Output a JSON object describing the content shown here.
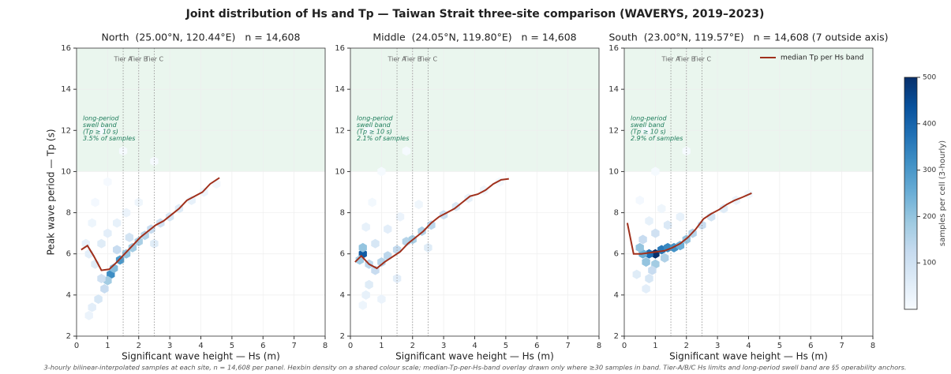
{
  "title": "Joint distribution of Hs and Tp — Taiwan Strait three-site comparison (WAVERYS, 2019–2023)",
  "footnote": "3-hourly bilinear-interpolated samples at each site, n = 14,608 per panel. Hexbin density on a shared colour scale; median-Tp-per-Hs-band overlay drawn only where ≥30 samples in band. Tier-A/B/C Hs limits and long-period swell band are §5 operability anchors.",
  "colorbar": {
    "label": "samples per cell (3-hourly)",
    "lim": [
      0,
      500
    ],
    "ticks": [
      100,
      200,
      300,
      400,
      500
    ]
  },
  "chart_data": [
    {
      "type": "hexbin",
      "title": "North  (25.00°N, 120.44°E)   n = 14,608",
      "xlabel": "Significant wave height — Hs (m)",
      "ylabel": "Peak wave period — Tp (s)",
      "xlim": [
        0,
        8
      ],
      "ylim": [
        2,
        16
      ],
      "xticks": [
        0,
        1,
        2,
        3,
        4,
        5,
        6,
        7,
        8
      ],
      "yticks": [
        2,
        4,
        6,
        8,
        10,
        12,
        14,
        16
      ],
      "grid": true,
      "tiers": [
        {
          "value": 1.5,
          "label": "Tier A"
        },
        {
          "value": 2.0,
          "label": "Tier B"
        },
        {
          "value": 2.5,
          "label": "Tier C"
        }
      ],
      "band": [
        10,
        16
      ],
      "band_label": [
        "long-period",
        "swell band",
        "(Tp ≥ 10 s)",
        "3.5% of samples"
      ],
      "hexbin": {
        "x": [
          1.1,
          1.4,
          1.2,
          1.0,
          0.9,
          0.7,
          0.5,
          0.4,
          1.6,
          1.8,
          2.0,
          2.2,
          2.4,
          2.7,
          3.0,
          3.3,
          3.7,
          4.1,
          4.5,
          0.6,
          0.4,
          0.3,
          0.8,
          1.0,
          1.3,
          1.6,
          0.5,
          2.0,
          0.8,
          1.3,
          1.7,
          2.5,
          0.6,
          1.0,
          1.5,
          0.8,
          2.5
        ],
        "y": [
          5.0,
          5.7,
          5.3,
          4.7,
          4.3,
          3.8,
          3.4,
          3.0,
          6.0,
          6.3,
          6.6,
          6.9,
          7.2,
          7.5,
          7.8,
          8.2,
          8.6,
          9.0,
          9.4,
          5.5,
          6.0,
          6.5,
          6.5,
          7.0,
          7.5,
          8.0,
          7.5,
          8.5,
          4.8,
          6.2,
          6.8,
          6.5,
          8.5,
          9.5,
          11,
          12,
          10.5
        ],
        "counts": [
          320,
          300,
          220,
          180,
          120,
          80,
          50,
          30,
          200,
          180,
          170,
          150,
          120,
          100,
          80,
          60,
          40,
          25,
          12,
          60,
          50,
          40,
          60,
          50,
          40,
          30,
          25,
          20,
          100,
          120,
          90,
          60,
          10,
          6,
          4,
          3,
          4
        ]
      },
      "median": {
        "color": "#a0301c",
        "x": [
          0.15,
          0.35,
          0.55,
          0.8,
          1.05,
          1.3,
          1.55,
          1.8,
          2.05,
          2.3,
          2.55,
          2.8,
          3.05,
          3.3,
          3.55,
          3.8,
          4.05,
          4.3,
          4.6
        ],
        "y": [
          6.2,
          6.4,
          5.9,
          5.2,
          5.25,
          5.6,
          6.0,
          6.4,
          6.8,
          7.1,
          7.4,
          7.6,
          7.9,
          8.2,
          8.6,
          8.8,
          9.0,
          9.4,
          9.7
        ]
      }
    },
    {
      "type": "hexbin",
      "title": "Middle  (24.05°N, 119.80°E)   n = 14,608",
      "xlabel": "Significant wave height — Hs (m)",
      "xlim": [
        0,
        8
      ],
      "ylim": [
        2,
        16
      ],
      "xticks": [
        0,
        1,
        2,
        3,
        4,
        5,
        6,
        7,
        8
      ],
      "yticks": [
        2,
        4,
        6,
        8,
        10,
        12,
        14,
        16
      ],
      "grid": true,
      "tiers": [
        {
          "value": 1.5,
          "label": "Tier A"
        },
        {
          "value": 2.0,
          "label": "Tier B"
        },
        {
          "value": 2.5,
          "label": "Tier C"
        }
      ],
      "band": [
        10,
        16
      ],
      "band_label": [
        "long-period",
        "swell band",
        "(Tp ≥ 10 s)",
        "2.1% of samples"
      ],
      "hexbin": {
        "x": [
          0.4,
          0.4,
          0.3,
          0.6,
          0.8,
          1.0,
          1.2,
          1.5,
          1.8,
          2.0,
          2.3,
          2.6,
          3.0,
          3.4,
          3.8,
          4.3,
          4.8,
          0.6,
          0.5,
          0.4,
          0.8,
          1.2,
          0.5,
          1.6,
          2.2,
          0.7,
          1.0,
          1.5,
          2.5,
          1.0,
          1.8,
          0.6
        ],
        "y": [
          6.0,
          6.3,
          5.7,
          5.5,
          5.2,
          5.6,
          5.9,
          6.2,
          6.6,
          6.7,
          7.1,
          7.4,
          7.9,
          8.3,
          8.7,
          9.1,
          9.5,
          4.5,
          4.0,
          3.5,
          6.5,
          7.2,
          7.3,
          7.8,
          8.4,
          8.5,
          3.8,
          4.8,
          6.3,
          10,
          11,
          12
        ],
        "counts": [
          420,
          200,
          180,
          140,
          120,
          150,
          140,
          130,
          150,
          170,
          160,
          140,
          110,
          70,
          40,
          20,
          8,
          60,
          40,
          25,
          80,
          50,
          40,
          30,
          20,
          12,
          30,
          50,
          60,
          5,
          4,
          3
        ]
      },
      "median": {
        "color": "#a0301c",
        "x": [
          0.15,
          0.35,
          0.6,
          0.85,
          1.1,
          1.35,
          1.6,
          1.85,
          2.1,
          2.35,
          2.6,
          2.85,
          3.1,
          3.35,
          3.6,
          3.85,
          4.1,
          4.35,
          4.6,
          4.85,
          5.1
        ],
        "y": [
          5.6,
          5.9,
          5.5,
          5.3,
          5.6,
          5.85,
          6.1,
          6.5,
          6.8,
          7.1,
          7.5,
          7.8,
          8.0,
          8.2,
          8.5,
          8.8,
          8.9,
          9.1,
          9.4,
          9.6,
          9.65
        ]
      }
    },
    {
      "type": "hexbin",
      "title": "South  (23.00°N, 119.57°E)   n = 14,608 (7 outside axis)",
      "xlabel": "Significant wave height — Hs (m)",
      "xlim": [
        0,
        8
      ],
      "ylim": [
        2,
        16
      ],
      "xticks": [
        0,
        1,
        2,
        3,
        4,
        5,
        6,
        7,
        8
      ],
      "yticks": [
        2,
        4,
        6,
        8,
        10,
        12,
        14,
        16
      ],
      "grid": true,
      "legend": "upper right",
      "tiers": [
        {
          "value": 1.5,
          "label": "Tier A"
        },
        {
          "value": 2.0,
          "label": "Tier B"
        },
        {
          "value": 2.5,
          "label": "Tier C"
        }
      ],
      "band": [
        10,
        16
      ],
      "band_label": [
        "long-period",
        "swell band",
        "(Tp ≥ 10 s)",
        "2.9% of samples"
      ],
      "hexbin": {
        "x": [
          1.0,
          0.8,
          1.2,
          1.4,
          1.6,
          0.6,
          0.5,
          1.8,
          2.0,
          2.2,
          2.5,
          2.8,
          3.2,
          3.6,
          4.0,
          0.7,
          1.0,
          1.3,
          0.9,
          0.8,
          0.7,
          0.6,
          1.0,
          1.4,
          0.8,
          1.8,
          1.2,
          0.5,
          0.4,
          1.0,
          2.0,
          0.7
        ],
        "y": [
          6.0,
          6.0,
          6.2,
          6.3,
          6.3,
          6.0,
          6.3,
          6.4,
          6.7,
          7.0,
          7.4,
          7.8,
          8.2,
          8.6,
          8.9,
          5.6,
          5.5,
          5.8,
          5.2,
          4.8,
          4.3,
          6.7,
          7.0,
          7.4,
          7.6,
          7.8,
          8.2,
          8.6,
          5.0,
          10,
          11,
          12
        ],
        "counts": [
          500,
          380,
          360,
          330,
          310,
          250,
          200,
          250,
          200,
          150,
          120,
          90,
          60,
          30,
          15,
          200,
          180,
          160,
          120,
          80,
          50,
          120,
          100,
          70,
          40,
          40,
          20,
          10,
          60,
          5,
          4,
          3
        ]
      },
      "median": {
        "name": "median Tp per Hs band",
        "color": "#a0301c",
        "x": [
          0.1,
          0.3,
          0.55,
          0.8,
          1.05,
          1.3,
          1.55,
          1.8,
          2.05,
          2.3,
          2.55,
          2.8,
          3.05,
          3.3,
          3.55,
          3.8,
          4.1
        ],
        "y": [
          7.5,
          6.0,
          6.0,
          6.05,
          6.1,
          6.15,
          6.3,
          6.5,
          6.8,
          7.2,
          7.7,
          7.95,
          8.15,
          8.4,
          8.6,
          8.75,
          8.95
        ]
      }
    }
  ]
}
